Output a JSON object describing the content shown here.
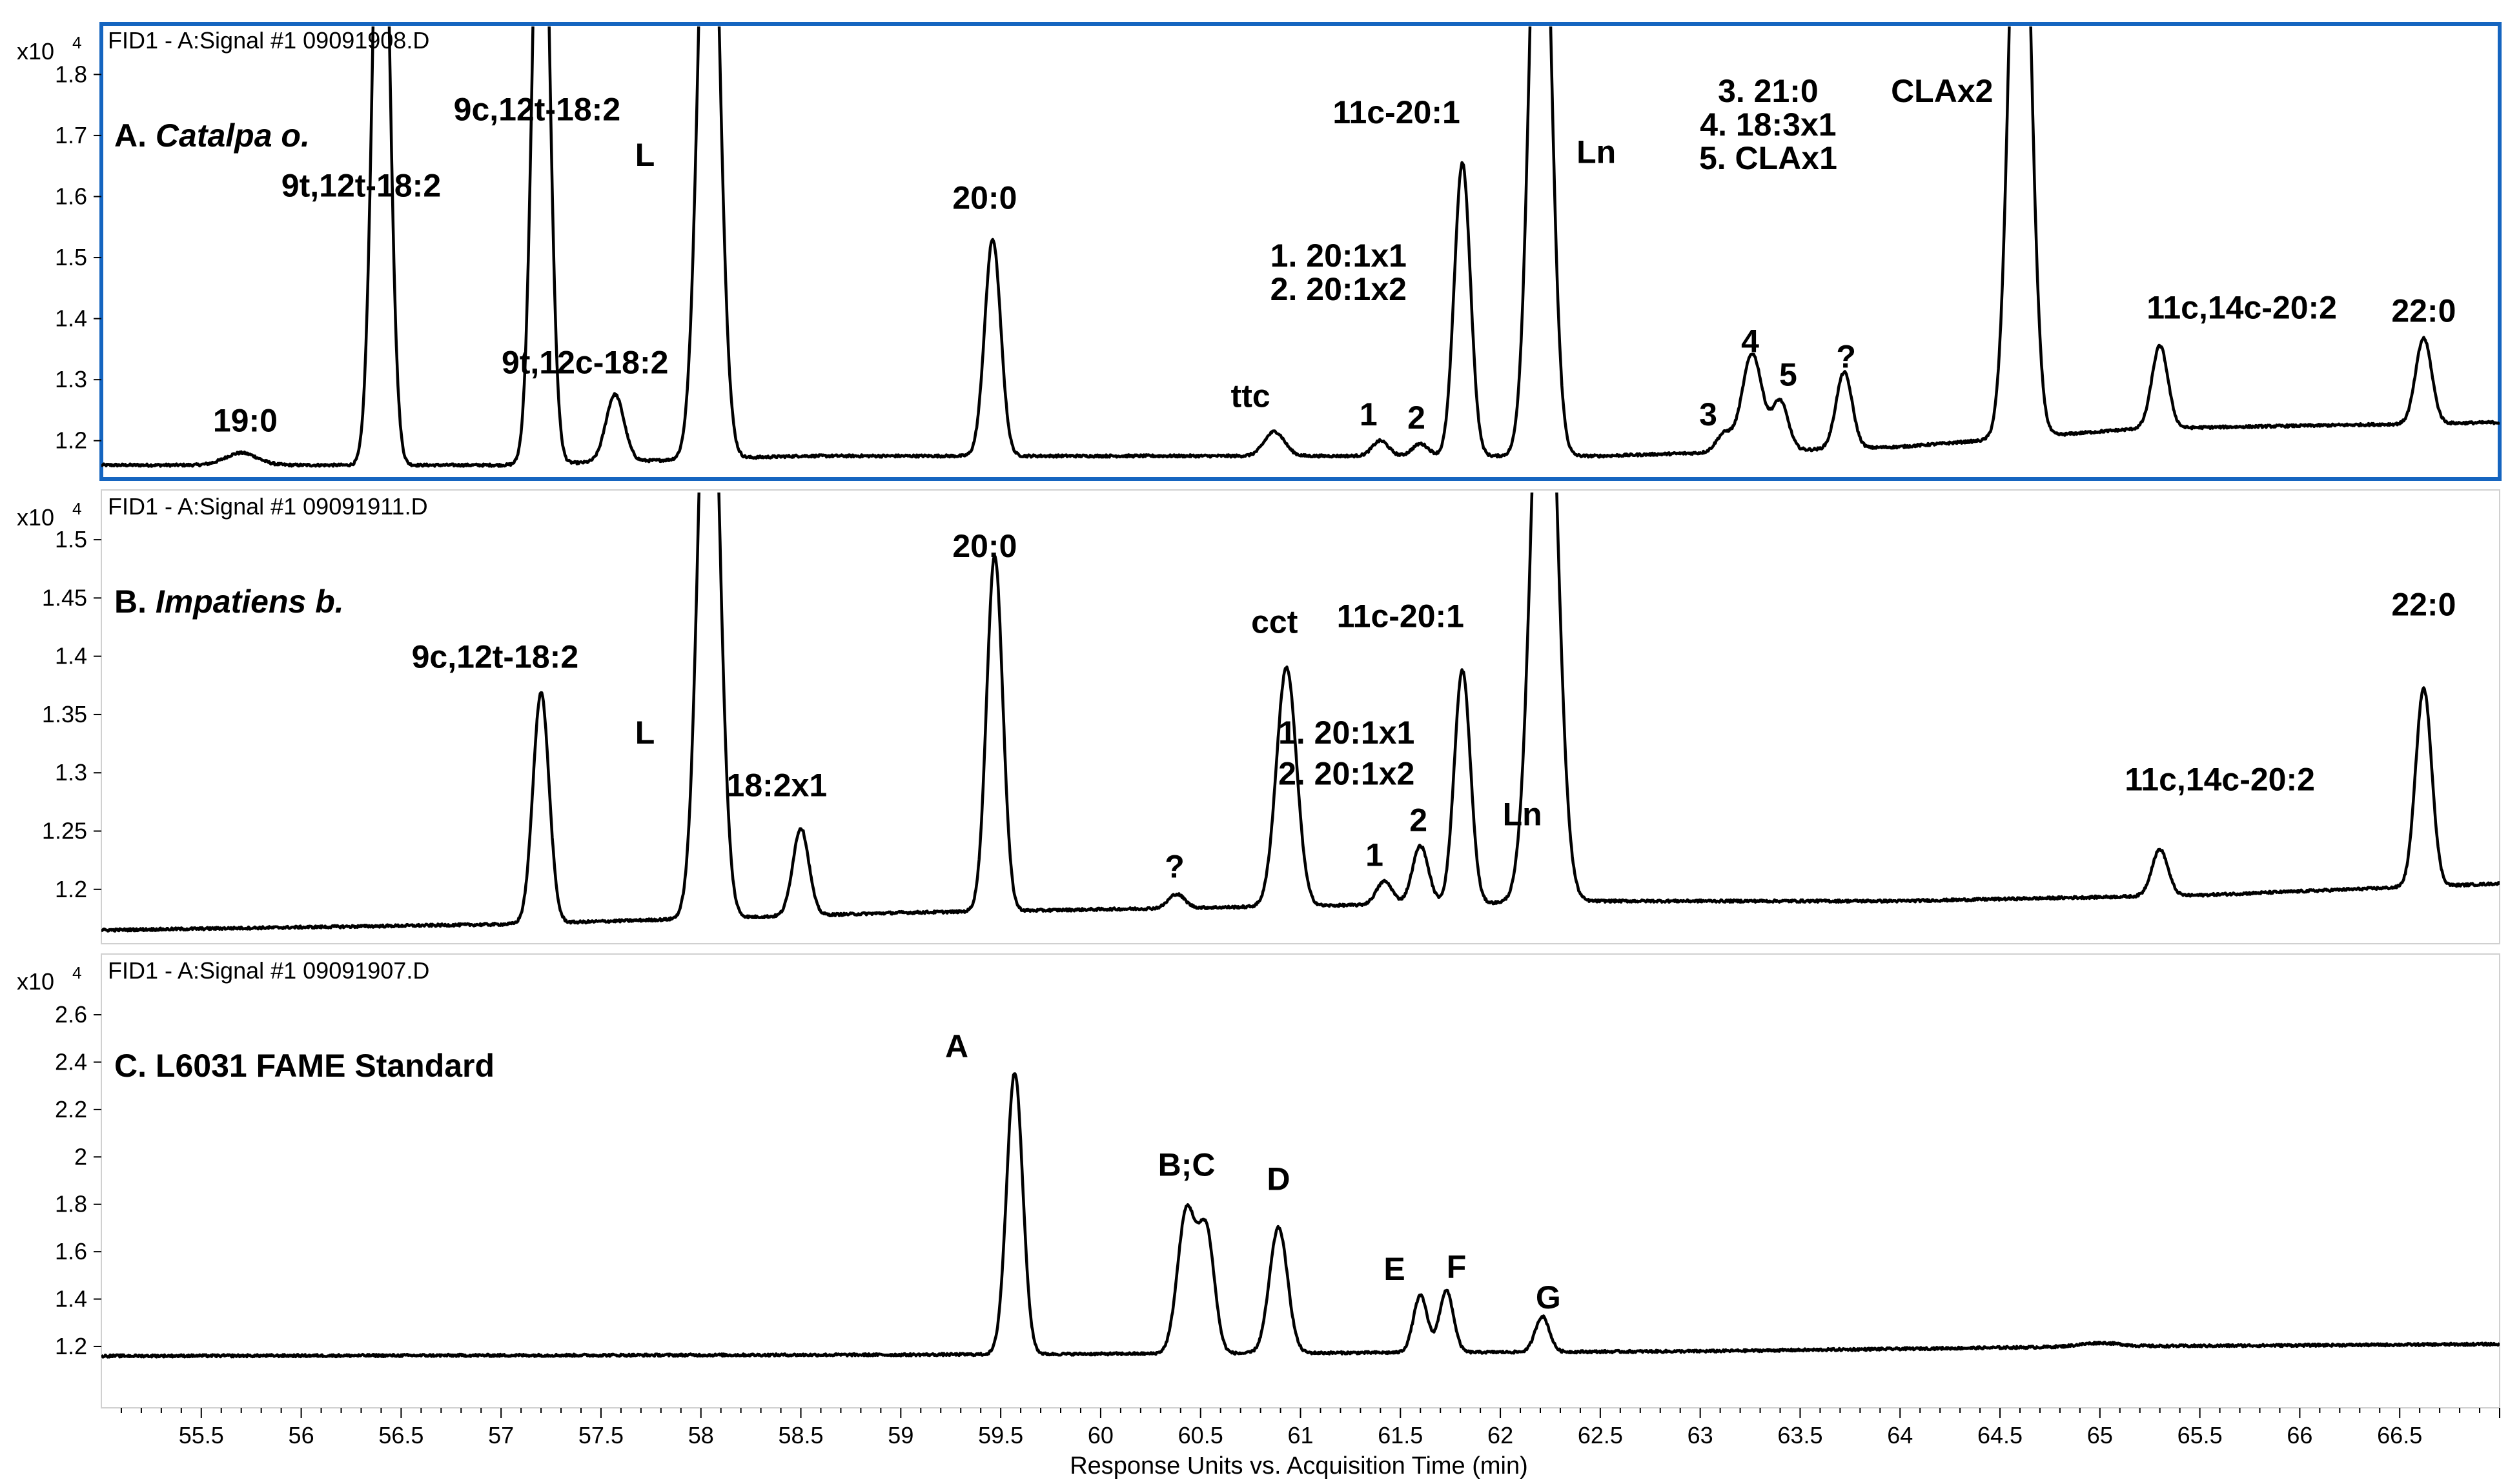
{
  "chart_data": {
    "type": "line",
    "xlabel": "Response Units vs. Acquisition Time (min)",
    "xlim": [
      55.0,
      67.0
    ],
    "x_ticks": [
      "55.5",
      "56",
      "56.5",
      "57",
      "57.5",
      "58",
      "58.5",
      "59",
      "59.5",
      "60",
      "60.5",
      "61",
      "61.5",
      "62",
      "62.5",
      "63",
      "63.5",
      "64",
      "64.5",
      "65",
      "65.5",
      "66",
      "66.5"
    ],
    "panels": [
      {
        "header": "FID1 - A:Signal #1 09091908.D",
        "exp_base": "x10",
        "exp_power": "4",
        "title_letter": "A.",
        "title_name": "Catalpa o.",
        "ylim": [
          1.15,
          1.83
        ],
        "y_ticks": [
          "1.2",
          "1.3",
          "1.4",
          "1.5",
          "1.6",
          "1.7",
          "1.8"
        ],
        "baseline": [
          [
            55.0,
            1.16
          ],
          [
            57.0,
            1.16
          ],
          [
            58.5,
            1.175
          ],
          [
            62.5,
            1.175
          ],
          [
            64.0,
            1.19
          ],
          [
            65.2,
            1.22
          ],
          [
            67.0,
            1.23
          ]
        ],
        "peaks": [
          {
            "rt": 55.7,
            "height": 0.02,
            "width": 0.08
          },
          {
            "rt": 56.4,
            "height": 1.2,
            "width": 0.04
          },
          {
            "rt": 57.2,
            "height": 1.2,
            "width": 0.04
          },
          {
            "rt": 57.57,
            "height": 0.11,
            "width": 0.045
          },
          {
            "rt": 58.04,
            "height": 1.2,
            "width": 0.05
          },
          {
            "rt": 59.46,
            "height": 0.355,
            "width": 0.04
          },
          {
            "rt": 60.87,
            "height": 0.04,
            "width": 0.05
          },
          {
            "rt": 61.4,
            "height": 0.025,
            "width": 0.04
          },
          {
            "rt": 61.6,
            "height": 0.02,
            "width": 0.04
          },
          {
            "rt": 61.81,
            "height": 0.48,
            "width": 0.04
          },
          {
            "rt": 62.2,
            "height": 1.2,
            "width": 0.05
          },
          {
            "rt": 63.12,
            "height": 0.03,
            "width": 0.04
          },
          {
            "rt": 63.26,
            "height": 0.16,
            "width": 0.05
          },
          {
            "rt": 63.4,
            "height": 0.08,
            "width": 0.04
          },
          {
            "rt": 63.72,
            "height": 0.125,
            "width": 0.04
          },
          {
            "rt": 64.6,
            "height": 1.2,
            "width": 0.05
          },
          {
            "rt": 65.3,
            "height": 0.135,
            "width": 0.04
          },
          {
            "rt": 66.62,
            "height": 0.14,
            "width": 0.04
          }
        ],
        "annotations": [
          {
            "text": "19:0",
            "rt": 55.72,
            "y": 1.215
          },
          {
            "text": "9t,12t-18:2",
            "rt": 56.3,
            "y": 1.6
          },
          {
            "text": "9c,12t-18:2",
            "rt": 57.18,
            "y": 1.725
          },
          {
            "text": "9t,12c-18:2",
            "rt": 57.42,
            "y": 1.31
          },
          {
            "text": "L",
            "rt": 57.72,
            "y": 1.65
          },
          {
            "text": "20:0",
            "rt": 59.42,
            "y": 1.58
          },
          {
            "text": "ttc",
            "rt": 60.75,
            "y": 1.255
          },
          {
            "text": "1. 20:1x1",
            "rt": 61.19,
            "y": 1.485
          },
          {
            "text": "2. 20:1x2",
            "rt": 61.19,
            "y": 1.43
          },
          {
            "text": "1",
            "rt": 61.34,
            "y": 1.225
          },
          {
            "text": "2",
            "rt": 61.58,
            "y": 1.22
          },
          {
            "text": "11c-20:1",
            "rt": 61.48,
            "y": 1.72
          },
          {
            "text": "Ln",
            "rt": 62.48,
            "y": 1.655
          },
          {
            "text": "3. 21:0",
            "rt": 63.34,
            "y": 1.755
          },
          {
            "text": "4. 18:3x1",
            "rt": 63.34,
            "y": 1.7
          },
          {
            "text": "5. CLAx1",
            "rt": 63.34,
            "y": 1.645
          },
          {
            "text": "3",
            "rt": 63.04,
            "y": 1.225
          },
          {
            "text": "4",
            "rt": 63.25,
            "y": 1.345
          },
          {
            "text": "5",
            "rt": 63.44,
            "y": 1.29
          },
          {
            "text": "?",
            "rt": 63.73,
            "y": 1.32
          },
          {
            "text": "CLAx2",
            "rt": 64.21,
            "y": 1.755
          },
          {
            "text": "11c,14c-20:2",
            "rt": 65.71,
            "y": 1.4
          },
          {
            "text": "22:0",
            "rt": 66.62,
            "y": 1.395
          }
        ]
      },
      {
        "header": "FID1 - A:Signal #1 09091911.D",
        "exp_base": "x10",
        "exp_power": "4",
        "title_letter": "B.",
        "title_name": "Impatiens b.",
        "ylim": [
          1.16,
          1.515
        ],
        "y_ticks": [
          "1.2",
          "1.25",
          "1.3",
          "1.35",
          "1.4",
          "1.45",
          "1.5"
        ],
        "baseline": [
          [
            55.0,
            1.165
          ],
          [
            57.0,
            1.17
          ],
          [
            59.0,
            1.18
          ],
          [
            62.5,
            1.19
          ],
          [
            64.0,
            1.19
          ],
          [
            65.5,
            1.195
          ],
          [
            67.0,
            1.205
          ]
        ],
        "peaks": [
          {
            "rt": 57.2,
            "height": 0.198,
            "width": 0.04
          },
          {
            "rt": 58.04,
            "height": 0.6,
            "width": 0.05
          },
          {
            "rt": 58.5,
            "height": 0.075,
            "width": 0.04
          },
          {
            "rt": 59.47,
            "height": 0.305,
            "width": 0.04
          },
          {
            "rt": 60.38,
            "height": 0.012,
            "width": 0.04
          },
          {
            "rt": 60.93,
            "height": 0.205,
            "width": 0.05
          },
          {
            "rt": 61.42,
            "height": 0.02,
            "width": 0.04
          },
          {
            "rt": 61.6,
            "height": 0.05,
            "width": 0.04
          },
          {
            "rt": 61.81,
            "height": 0.2,
            "width": 0.04
          },
          {
            "rt": 62.22,
            "height": 0.6,
            "width": 0.06
          },
          {
            "rt": 65.3,
            "height": 0.04,
            "width": 0.04
          },
          {
            "rt": 66.62,
            "height": 0.17,
            "width": 0.04
          }
        ],
        "annotations": [
          {
            "text": "9c,12t-18:2",
            "rt": 56.97,
            "y": 1.39
          },
          {
            "text": "L",
            "rt": 57.72,
            "y": 1.325
          },
          {
            "text": "18:2x1",
            "rt": 58.38,
            "y": 1.28
          },
          {
            "text": "20:0",
            "rt": 59.42,
            "y": 1.485
          },
          {
            "text": "?",
            "rt": 60.37,
            "y": 1.21
          },
          {
            "text": "cct",
            "rt": 60.87,
            "y": 1.42
          },
          {
            "text": "1. 20:1x1",
            "rt": 61.23,
            "y": 1.325
          },
          {
            "text": "2. 20:1x2",
            "rt": 61.23,
            "y": 1.29
          },
          {
            "text": "1",
            "rt": 61.37,
            "y": 1.22
          },
          {
            "text": "2",
            "rt": 61.59,
            "y": 1.25
          },
          {
            "text": "11c-20:1",
            "rt": 61.5,
            "y": 1.425
          },
          {
            "text": "Ln",
            "rt": 62.11,
            "y": 1.255
          },
          {
            "text": "11c,14c-20:2",
            "rt": 65.6,
            "y": 1.285
          },
          {
            "text": "22:0",
            "rt": 66.62,
            "y": 1.435
          }
        ]
      },
      {
        "header": "FID1 - A:Signal #1 09091907.D",
        "exp_base": "x10",
        "exp_power": "4",
        "title_letter": "C.",
        "title_name": "L6031 FAME Standard",
        "ylim": [
          1.05,
          2.72
        ],
        "y_ticks": [
          "1.2",
          "1.4",
          "1.6",
          "1.8",
          "2",
          "2.2",
          "2.4",
          "2.6"
        ],
        "baseline": [
          [
            55.0,
            1.16
          ],
          [
            59.0,
            1.165
          ],
          [
            63.0,
            1.18
          ],
          [
            65.0,
            1.2
          ],
          [
            67.0,
            1.21
          ]
        ],
        "peaks": [
          {
            "rt": 59.57,
            "height": 1.19,
            "width": 0.04
          },
          {
            "rt": 60.43,
            "height": 0.6,
            "width": 0.045
          },
          {
            "rt": 60.53,
            "height": 0.5,
            "width": 0.04
          },
          {
            "rt": 60.89,
            "height": 0.53,
            "width": 0.045
          },
          {
            "rt": 61.6,
            "height": 0.24,
            "width": 0.035
          },
          {
            "rt": 61.73,
            "height": 0.26,
            "width": 0.035
          },
          {
            "rt": 62.21,
            "height": 0.15,
            "width": 0.035
          },
          {
            "rt": 65.0,
            "height": 0.015,
            "width": 0.1
          }
        ],
        "annotations": [
          {
            "text": "A",
            "rt": 59.28,
            "y": 2.42
          },
          {
            "text": "B;C",
            "rt": 60.43,
            "y": 1.92
          },
          {
            "text": "D",
            "rt": 60.89,
            "y": 1.86
          },
          {
            "text": "E",
            "rt": 61.47,
            "y": 1.48
          },
          {
            "text": "F",
            "rt": 61.78,
            "y": 1.49
          },
          {
            "text": "G",
            "rt": 62.24,
            "y": 1.36
          }
        ]
      }
    ]
  }
}
